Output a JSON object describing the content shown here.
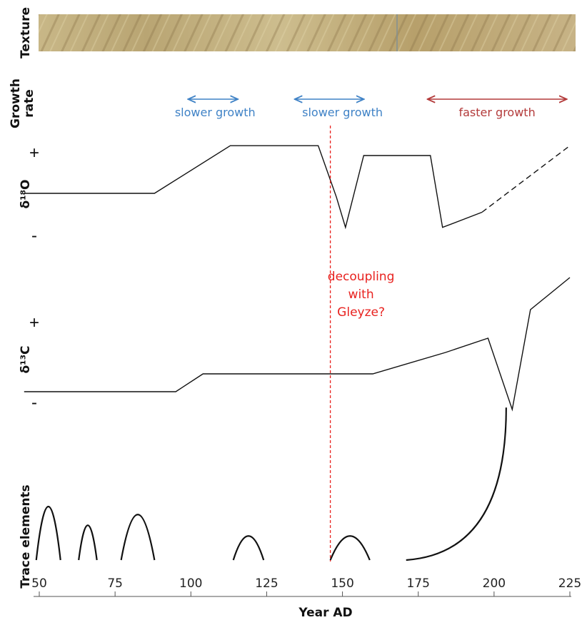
{
  "chart_data": {
    "type": "line",
    "xlabel": "Year AD",
    "xlim": [
      45,
      225
    ],
    "ticks": [
      50,
      75,
      100,
      125,
      150,
      175,
      200,
      225
    ],
    "panels": {
      "texture": {
        "label": "Texture"
      },
      "growth": {
        "label_line1": "Growth",
        "label_line2": "rate"
      },
      "d18o": {
        "label": "δ¹⁸O",
        "plus": "+",
        "minus": "-"
      },
      "d13c": {
        "label": "δ¹³C",
        "plus": "+",
        "minus": "-"
      },
      "trace": {
        "label": "Trace elements"
      }
    },
    "growth_annotations": [
      {
        "text": "slower growth",
        "x_from": 123,
        "x_to": 132,
        "text_x": 108,
        "color": "#3f82c6"
      },
      {
        "text": "slower growth",
        "x_from": 123,
        "x_to": 174,
        "text_x": 150,
        "color": "#3f82c6"
      },
      {
        "text": "faster growth",
        "x_from": 178,
        "x_to": 224,
        "text_x": 201,
        "color": "#b33a3a"
      }
    ],
    "d18o_series": [
      {
        "x": 45,
        "y": 0.0
      },
      {
        "x": 88,
        "y": 0.0
      },
      {
        "x": 113,
        "y": 0.63
      },
      {
        "x": 142,
        "y": 0.63
      },
      {
        "x": 148,
        "y": -0.05
      },
      {
        "x": 151,
        "y": -0.45
      },
      {
        "x": 157,
        "y": 0.5
      },
      {
        "x": 179,
        "y": 0.5
      },
      {
        "x": 183,
        "y": -0.45
      },
      {
        "x": 196,
        "y": -0.25
      }
    ],
    "d18o_dashed": [
      {
        "x": 196,
        "y": -0.25
      },
      {
        "x": 225,
        "y": 0.63
      }
    ],
    "d13c_series": [
      {
        "x": 45,
        "y": 0.0
      },
      {
        "x": 95,
        "y": 0.0
      },
      {
        "x": 104,
        "y": 0.25
      },
      {
        "x": 160,
        "y": 0.25
      },
      {
        "x": 184,
        "y": 0.55
      },
      {
        "x": 198,
        "y": 0.75
      },
      {
        "x": 206,
        "y": -0.25
      },
      {
        "x": 212,
        "y": 1.15
      },
      {
        "x": 225,
        "y": 1.6
      }
    ],
    "trace_peaks": [
      {
        "x0": 49,
        "x1": 57,
        "y": 1.0
      },
      {
        "x0": 63,
        "x1": 69,
        "y": 0.65
      },
      {
        "x0": 77,
        "x1": 88,
        "y": 0.85
      },
      {
        "x0": 114,
        "x1": 124,
        "y": 0.45
      },
      {
        "x0": 146,
        "x1": 159,
        "y": 0.45
      }
    ],
    "trace_rise": {
      "x0": 171,
      "x1": 204,
      "y": 2.85
    },
    "event": {
      "x": 146,
      "line1": "decoupling",
      "line2": "with",
      "line3": "Gleyze?",
      "color": "#e8221f"
    }
  }
}
